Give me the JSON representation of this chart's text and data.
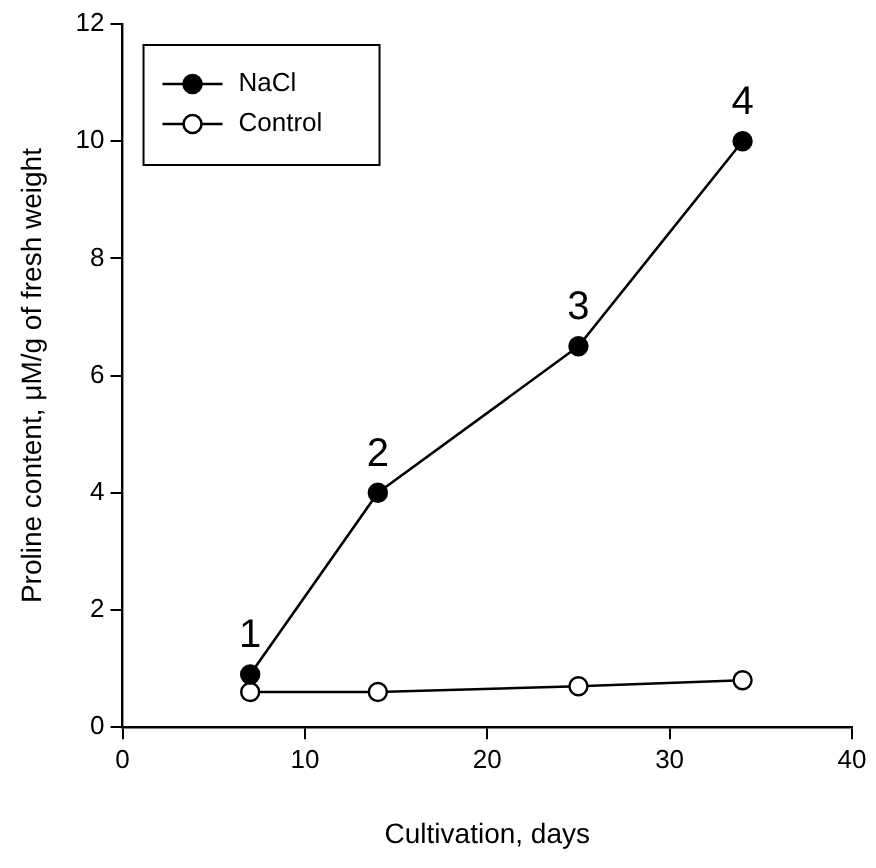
{
  "chart_data": {
    "type": "line",
    "xlabel": "Cultivation, days",
    "ylabel": "Proline content, μM/g of fresh weight",
    "series": [
      {
        "name": "NaCl",
        "color": "#000000",
        "x": [
          7,
          14,
          25,
          34
        ],
        "values": [
          0.9,
          4,
          6.5,
          10
        ]
      },
      {
        "name": "Control",
        "color": "#000000",
        "x": [
          7,
          14,
          25,
          34
        ],
        "values": [
          0.6,
          0.6,
          0.7,
          0.8
        ]
      }
    ],
    "xlim": [
      0,
      40
    ],
    "xticks": [
      0,
      10,
      20,
      30,
      40
    ],
    "ylim": [
      0,
      12
    ],
    "yticks": [
      0,
      2,
      4,
      6,
      8,
      10,
      12
    ],
    "grid": false,
    "legend": "top left",
    "marker": "circle",
    "line_style": "solid",
    "annotations": [
      {
        "text": "1",
        "x": 7,
        "y": 0.9
      },
      {
        "text": "2",
        "x": 14,
        "y": 4
      },
      {
        "text": "3",
        "x": 25,
        "y": 6.5
      },
      {
        "text": "4",
        "x": 34,
        "y": 10
      }
    ]
  }
}
